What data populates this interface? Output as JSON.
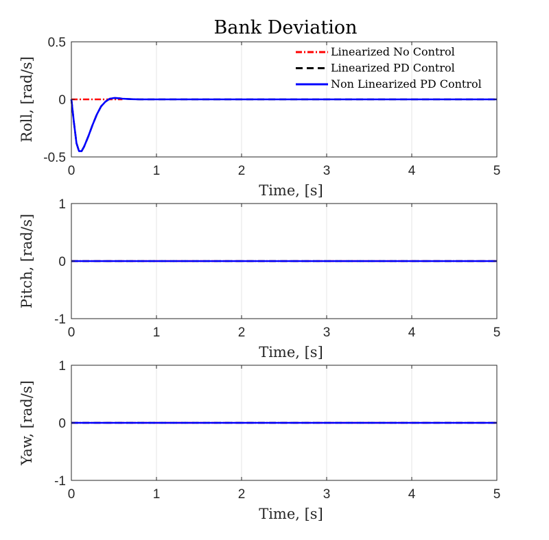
{
  "figure": {
    "title": "Bank Deviation"
  },
  "chart_data": [
    {
      "type": "line",
      "title": "Bank Deviation",
      "xlabel": "Time, [s]",
      "ylabel": "Roll, [rad/s]",
      "xlim": [
        0,
        5
      ],
      "ylim": [
        -0.5,
        0.5
      ],
      "xticks": [
        0,
        1,
        2,
        3,
        4,
        5
      ],
      "yticks": [
        -0.5,
        0,
        0.5
      ],
      "xtick_labels": [
        "0",
        "1",
        "2",
        "3",
        "4",
        "5"
      ],
      "ytick_labels": [
        "-0.5",
        "0",
        "0.5"
      ],
      "grid": true,
      "legend_position": "top-right",
      "series": [
        {
          "name": "Linearized No Control",
          "color": "#ff0000",
          "style": "dash-dot",
          "x": [
            0,
            0.1,
            0.2,
            0.3,
            0.4,
            0.5,
            0.6
          ],
          "y": [
            0,
            0,
            0,
            0,
            0,
            0,
            0
          ]
        },
        {
          "name": "Linearized PD Control",
          "color": "#000000",
          "style": "dashed",
          "x": [
            0,
            0.03,
            0.06,
            0.09,
            0.12,
            0.15,
            0.2,
            0.25,
            0.3,
            0.35,
            0.4,
            0.45,
            0.5,
            0.55,
            0.6,
            0.7,
            0.8,
            1.0,
            5.0
          ],
          "y": [
            0,
            -0.2,
            -0.38,
            -0.45,
            -0.45,
            -0.41,
            -0.32,
            -0.22,
            -0.13,
            -0.06,
            -0.02,
            0.005,
            0.012,
            0.01,
            0.006,
            0.002,
            0,
            0,
            0
          ]
        },
        {
          "name": "Non Linearized PD Control",
          "color": "#0000ff",
          "style": "solid",
          "x": [
            0,
            0.03,
            0.06,
            0.09,
            0.12,
            0.15,
            0.2,
            0.25,
            0.3,
            0.35,
            0.4,
            0.45,
            0.5,
            0.55,
            0.6,
            0.7,
            0.8,
            1.0,
            5.0
          ],
          "y": [
            0,
            -0.2,
            -0.38,
            -0.45,
            -0.45,
            -0.41,
            -0.32,
            -0.22,
            -0.13,
            -0.06,
            -0.02,
            0.005,
            0.012,
            0.01,
            0.006,
            0.002,
            0,
            0,
            0
          ]
        }
      ]
    },
    {
      "type": "line",
      "xlabel": "Time, [s]",
      "ylabel": "Pitch, [rad/s]",
      "xlim": [
        0,
        5
      ],
      "ylim": [
        -1,
        1
      ],
      "xticks": [
        0,
        1,
        2,
        3,
        4,
        5
      ],
      "yticks": [
        -1,
        0,
        1
      ],
      "xtick_labels": [
        "0",
        "1",
        "2",
        "3",
        "4",
        "5"
      ],
      "ytick_labels": [
        "-1",
        "0",
        "1"
      ],
      "grid": true,
      "series": [
        {
          "color": "#ff0000",
          "style": "dash-dot",
          "x": [
            0,
            5
          ],
          "y": [
            0,
            0
          ]
        },
        {
          "color": "#000000",
          "style": "dashed",
          "x": [
            0,
            5
          ],
          "y": [
            0,
            0
          ]
        },
        {
          "color": "#0000ff",
          "style": "solid",
          "x": [
            0,
            5
          ],
          "y": [
            0,
            0
          ]
        }
      ]
    },
    {
      "type": "line",
      "xlabel": "Time, [s]",
      "ylabel": "Yaw, [rad/s]",
      "xlim": [
        0,
        5
      ],
      "ylim": [
        -1,
        1
      ],
      "xticks": [
        0,
        1,
        2,
        3,
        4,
        5
      ],
      "yticks": [
        -1,
        0,
        1
      ],
      "xtick_labels": [
        "0",
        "1",
        "2",
        "3",
        "4",
        "5"
      ],
      "ytick_labels": [
        "-1",
        "0",
        "1"
      ],
      "grid": true,
      "series": [
        {
          "color": "#ff0000",
          "style": "dash-dot",
          "x": [
            0,
            5
          ],
          "y": [
            0,
            0
          ]
        },
        {
          "color": "#000000",
          "style": "dashed",
          "x": [
            0,
            5
          ],
          "y": [
            0,
            0
          ]
        },
        {
          "color": "#0000ff",
          "style": "solid",
          "x": [
            0,
            5
          ],
          "y": [
            0,
            0
          ]
        }
      ]
    }
  ]
}
